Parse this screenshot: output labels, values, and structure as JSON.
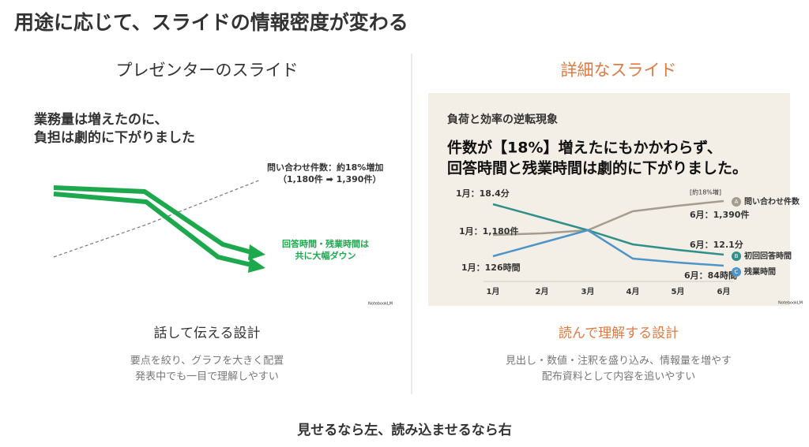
{
  "title": "用途に応じて、スライドの情報密度が変わる",
  "left": {
    "heading": "プレゼンターのスライド",
    "slide": {
      "headline": [
        "業務量は増えたのに、",
        "負担は劇的に下がりました"
      ],
      "inquiry_label": [
        "問い合わせ件数：約18%増加",
        "（1,180件 ➡ 1,390件）"
      ],
      "down_label": [
        "回答時間・残業時間は",
        "共に大幅ダウン"
      ],
      "logo": "NotebookLM"
    },
    "subheading": "話して伝える設計",
    "description": [
      "要点を絞り、グラフを大きく配置",
      "発表中でも一目で理解しやすい"
    ]
  },
  "right": {
    "heading": "詳細なスライド",
    "slide": {
      "title": "負荷と効率の逆転現象",
      "headline": [
        "件数が【18%】増えたにもかかわらず、",
        "回答時間と残業時間は劇的に下がりました。"
      ],
      "months": [
        "1月",
        "2月",
        "3月",
        "4月",
        "5月",
        "6月"
      ],
      "labels": [
        "1月：18.4分",
        "1月：1,180件",
        "1月：126時間",
        "[約18%増]",
        "6月：1,390件",
        "6月：12.1分",
        "6月：84時間"
      ],
      "legend": [
        {
          "badge": "A",
          "name": "問い合わせ件数"
        },
        {
          "badge": "B",
          "name": "初回回答時間"
        },
        {
          "badge": "C",
          "name": "残業時間"
        }
      ],
      "logo": "NotebookLM"
    },
    "subheading": "読んで理解する設計",
    "description": [
      "見出し・数値・注釈を盛り込み、情報量を増やす",
      "配布資料として内容を追いやすい"
    ]
  },
  "footer": "見せるなら左、読み込ませるなら右"
}
